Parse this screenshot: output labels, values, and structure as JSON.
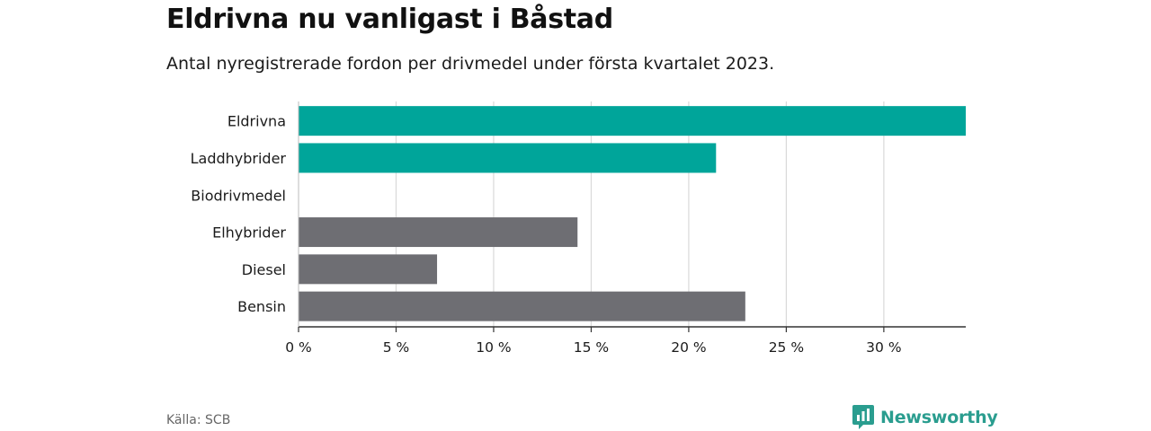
{
  "header": {
    "title": "Eldrivna nu vanligast i Båstad",
    "subtitle": "Antal nyregistrerade fordon per drivmedel under första kvartalet 2023."
  },
  "footer": {
    "source": "Källa: SCB",
    "brand": "Newsworthy",
    "brand_icon": "newsworthy-logo-icon"
  },
  "colors": {
    "highlight": "#00a59a",
    "default": "#6e6e73",
    "grid": "#d9d9d9",
    "axis": "#333333",
    "brand": "#2a9d8f"
  },
  "chart_data": {
    "type": "bar",
    "orientation": "horizontal",
    "categories": [
      "Eldrivna",
      "Laddhybrider",
      "Biodrivmedel",
      "Elhybrider",
      "Diesel",
      "Bensin"
    ],
    "values": [
      34.2,
      21.4,
      0,
      14.3,
      7.1,
      22.9
    ],
    "highlight": [
      true,
      true,
      false,
      false,
      false,
      false
    ],
    "xticks": [
      0,
      5,
      10,
      15,
      20,
      25,
      30
    ],
    "xtick_labels": [
      "0 %",
      "5 %",
      "10 %",
      "15 %",
      "20 %",
      "25 %",
      "30 %"
    ],
    "xlim": [
      0,
      34.2
    ],
    "grid": true
  }
}
